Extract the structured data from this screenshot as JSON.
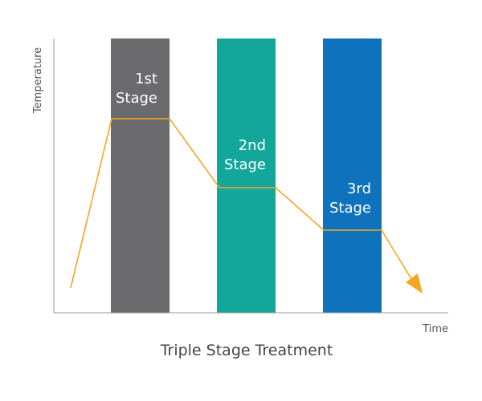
{
  "title": "Triple Stage Treatment",
  "axes": {
    "x_label": "Time",
    "y_label": "Temperature"
  },
  "colors": {
    "axis": "#999999",
    "curve": "#f5a623",
    "text_on_band": "#ffffff",
    "title": "#444444",
    "axis_text": "#555555"
  },
  "stages": [
    {
      "line1": "1st",
      "line2": "Stage",
      "color": "#6b6b6e"
    },
    {
      "line1": "2nd",
      "line2": "Stage",
      "color": "#13a79b"
    },
    {
      "line1": "3rd",
      "line2": "Stage",
      "color": "#0f72bc"
    }
  ]
}
